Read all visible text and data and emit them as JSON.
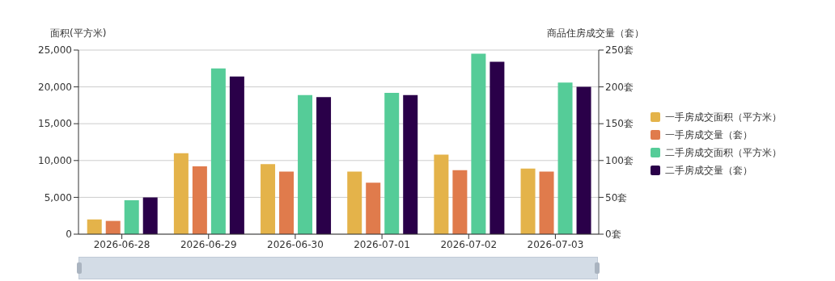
{
  "chart_data": {
    "type": "bar",
    "ylabel": "面积(平方米)",
    "y2label": "商品住房成交量（套）",
    "categories": [
      "2026-06-28",
      "2026-06-29",
      "2026-06-30",
      "2026-07-01",
      "2026-07-02",
      "2026-07-03"
    ],
    "series": [
      {
        "name": "一手房成交面积（平方米）",
        "color": "#e4b34a",
        "values": [
          2000,
          11000,
          9500,
          8500,
          10800,
          8900
        ]
      },
      {
        "name": "一手房成交量（套）",
        "color": "#e07b4c",
        "axis": "y2",
        "values": [
          18,
          92,
          85,
          70,
          87,
          85
        ]
      },
      {
        "name": "二手房成交面积（平方米）",
        "color": "#55cc98",
        "values": [
          4600,
          22500,
          18900,
          19200,
          24500,
          20600
        ]
      },
      {
        "name": "二手房成交量（套）",
        "color": "#2a0049",
        "axis": "y2",
        "values": [
          50,
          214,
          186,
          189,
          234,
          200
        ]
      }
    ],
    "ylim": [
      0,
      25000
    ],
    "yticks": [
      0,
      {
        "value": 5000,
        "label": "5,000"
      },
      {
        "value": 10000,
        "label": "10,000"
      },
      {
        "value": 15000,
        "label": "15,000"
      },
      {
        "value": 20000,
        "label": "20,000"
      },
      {
        "value": 25000,
        "label": "25,000"
      }
    ],
    "y2lim": [
      0,
      250
    ],
    "y2ticks": [
      {
        "value": 0,
        "label": "0套"
      },
      {
        "value": 50,
        "label": "50套"
      },
      {
        "value": 100,
        "label": "100套"
      },
      {
        "value": 150,
        "label": "150套"
      },
      {
        "value": 200,
        "label": "200套"
      },
      {
        "value": 250,
        "label": "250套"
      }
    ],
    "grid": "y",
    "legend": "right"
  }
}
